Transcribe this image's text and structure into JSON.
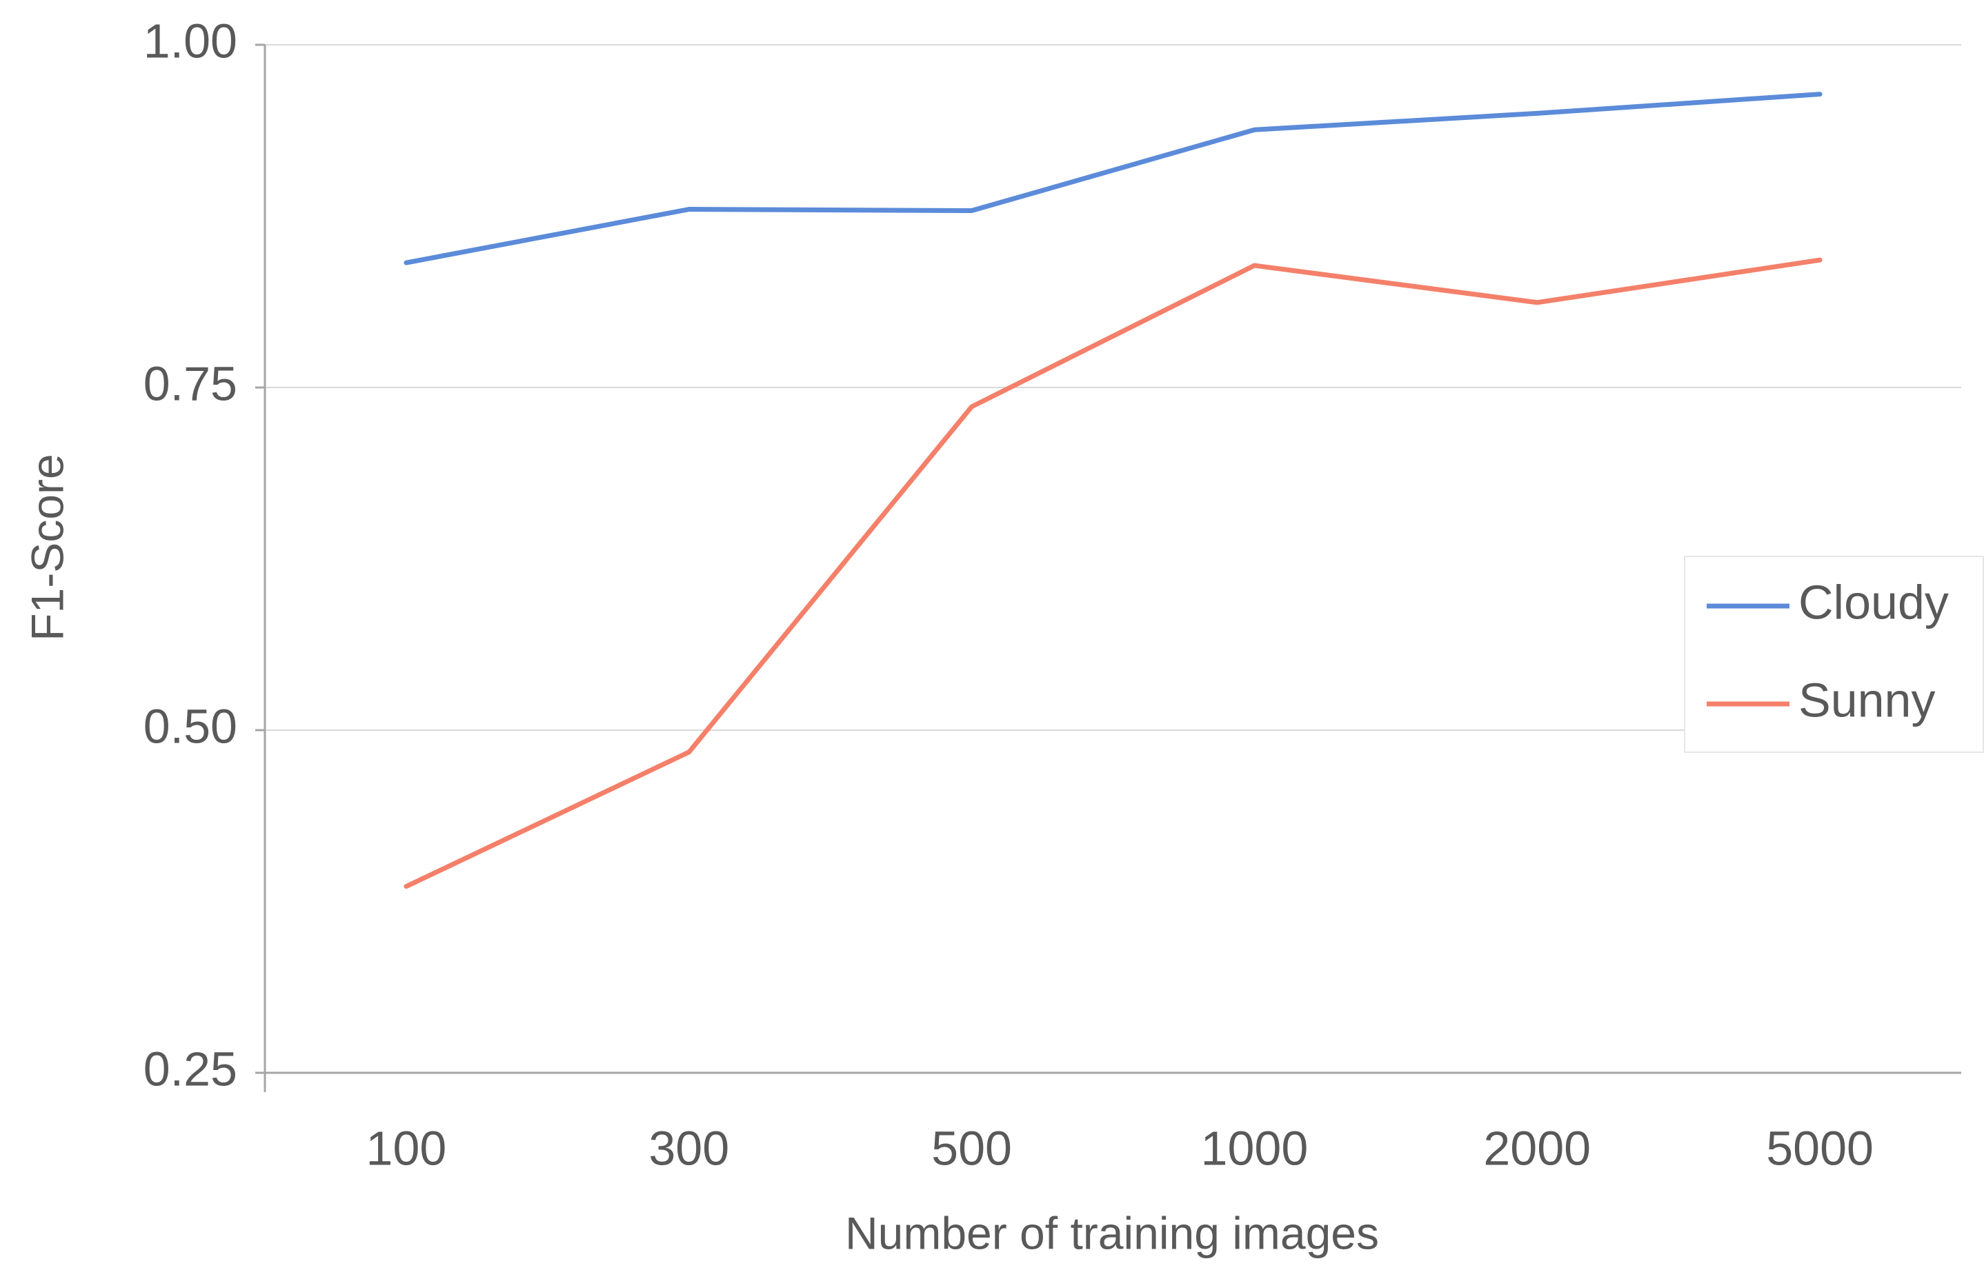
{
  "chart_data": {
    "type": "line",
    "x_label": "Number of training images",
    "y_label": "F1-Score",
    "categories": [
      "100",
      "300",
      "500",
      "1000",
      "2000",
      "5000"
    ],
    "series": [
      {
        "name": "Cloudy",
        "color": "#5b8bd9",
        "values": [
          0.841,
          0.88,
          0.879,
          0.938,
          0.95,
          0.964
        ]
      },
      {
        "name": "Sunny",
        "color": "#f4806a",
        "values": [
          0.386,
          0.484,
          0.736,
          0.839,
          0.812,
          0.843
        ]
      }
    ],
    "ylim": [
      0.25,
      1.0
    ],
    "yticks": [
      {
        "value": 0.25,
        "label": "0.25"
      },
      {
        "value": 0.5,
        "label": "0.50"
      },
      {
        "value": 0.75,
        "label": "0.75"
      },
      {
        "value": 1.0,
        "label": "1.00"
      }
    ],
    "grid": true,
    "legend": "right"
  }
}
